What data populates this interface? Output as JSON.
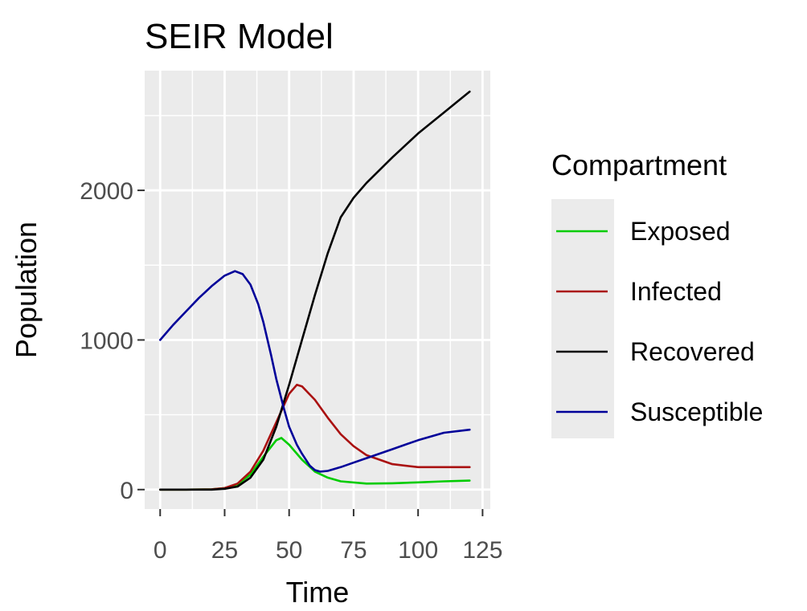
{
  "chart_data": {
    "type": "line",
    "title": "SEIR Model",
    "xlabel": "Time",
    "ylabel": "Population",
    "xlim": [
      -6,
      128
    ],
    "ylim": [
      -130,
      2800
    ],
    "xticks": [
      0,
      25,
      50,
      75,
      100,
      125
    ],
    "yticks": [
      0,
      1000,
      2000
    ],
    "grid": true,
    "legend": {
      "title": "Compartment",
      "position": "right"
    },
    "series": [
      {
        "name": "Exposed",
        "color": "#00cc00",
        "x": [
          0,
          10,
          20,
          25,
          30,
          35,
          40,
          45,
          47,
          50,
          55,
          60,
          65,
          70,
          80,
          90,
          100,
          110,
          120
        ],
        "y": [
          0,
          0,
          2,
          10,
          35,
          100,
          220,
          330,
          345,
          300,
          200,
          120,
          80,
          55,
          40,
          42,
          48,
          55,
          60
        ]
      },
      {
        "name": "Infected",
        "color": "#aa1111",
        "x": [
          0,
          10,
          20,
          25,
          30,
          35,
          40,
          45,
          50,
          53,
          55,
          60,
          65,
          70,
          75,
          80,
          90,
          100,
          110,
          120
        ],
        "y": [
          0,
          0,
          2,
          10,
          40,
          120,
          260,
          450,
          640,
          700,
          690,
          600,
          480,
          370,
          290,
          230,
          170,
          150,
          150,
          150
        ]
      },
      {
        "name": "Recovered",
        "color": "#000000",
        "x": [
          0,
          10,
          20,
          25,
          30,
          35,
          40,
          45,
          50,
          55,
          60,
          65,
          70,
          75,
          80,
          90,
          100,
          110,
          120
        ],
        "y": [
          0,
          0,
          0,
          5,
          20,
          80,
          200,
          420,
          700,
          1000,
          1300,
          1580,
          1820,
          1950,
          2050,
          2220,
          2380,
          2520,
          2660
        ]
      },
      {
        "name": "Susceptible",
        "color": "#000099",
        "x": [
          0,
          5,
          10,
          15,
          20,
          25,
          29,
          32,
          35,
          38,
          40,
          43,
          45,
          48,
          50,
          53,
          55,
          58,
          60,
          62,
          65,
          70,
          75,
          80,
          90,
          100,
          110,
          120
        ],
        "y": [
          1000,
          1100,
          1190,
          1280,
          1360,
          1430,
          1460,
          1440,
          1370,
          1240,
          1120,
          900,
          740,
          540,
          420,
          300,
          240,
          160,
          130,
          120,
          125,
          150,
          180,
          210,
          270,
          330,
          380,
          400
        ]
      }
    ]
  }
}
